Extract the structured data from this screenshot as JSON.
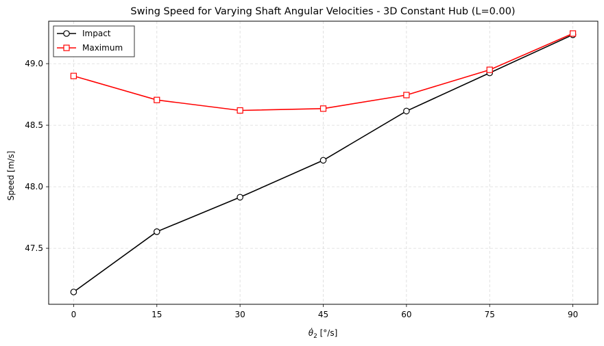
{
  "chart_data": {
    "type": "line",
    "title": "Swing Speed for Varying Shaft Angular Velocities - 3D Constant Hub (L=0.00)",
    "xlabel_main": "θ̇",
    "xlabel_sub": "2",
    "xlabel_unit": " [°/s]",
    "ylabel": "Speed [m/s]",
    "x": [
      0,
      15,
      30,
      45,
      60,
      75,
      90
    ],
    "x_ticks": [
      "0",
      "15",
      "30",
      "45",
      "60",
      "75",
      "90"
    ],
    "y_ticks": [
      "47.5",
      "48.0",
      "48.5",
      "49.0"
    ],
    "y_tick_values": [
      47.5,
      48.0,
      48.5,
      49.0
    ],
    "xlim": [
      -4.5,
      94.5
    ],
    "ylim": [
      47.045,
      49.345
    ],
    "grid": true,
    "legend_position": "top-left",
    "series": [
      {
        "name": "Impact",
        "color": "#000000",
        "marker": "circle",
        "values": [
          47.145,
          47.635,
          47.915,
          48.215,
          48.615,
          48.925,
          49.235
        ]
      },
      {
        "name": "Maximum",
        "color": "#ff0000",
        "marker": "square",
        "values": [
          48.9,
          48.705,
          48.62,
          48.635,
          48.745,
          48.95,
          49.245
        ]
      }
    ]
  }
}
